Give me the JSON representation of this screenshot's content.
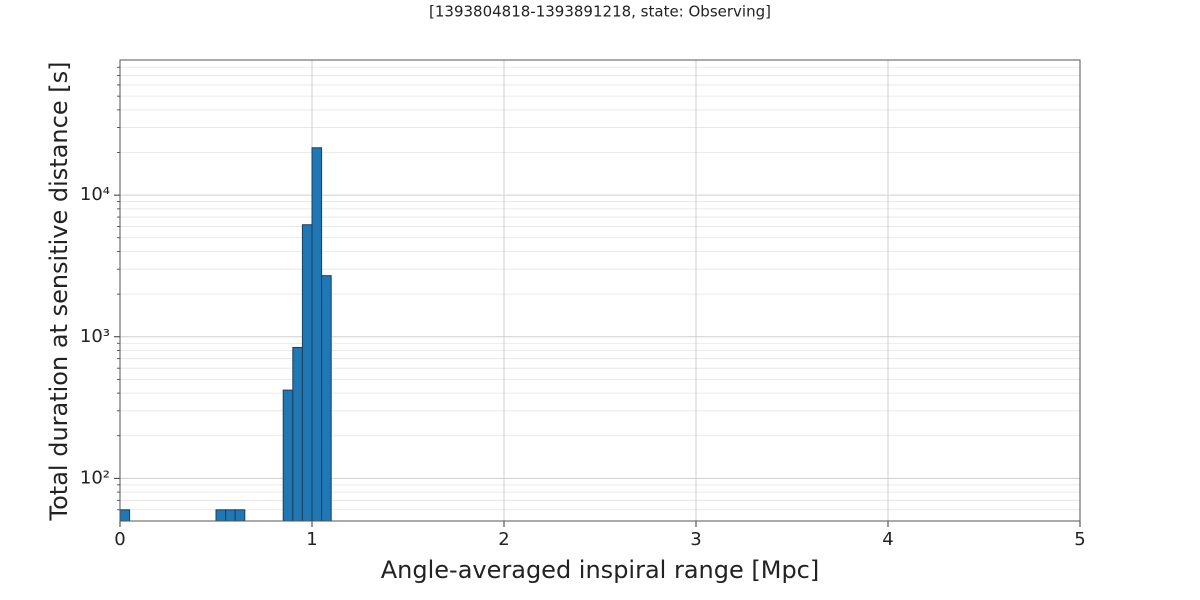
{
  "chart_data": {
    "type": "histogram",
    "title": "[1393804818-1393891218, state: Observing]",
    "xlabel": "Angle-averaged inspiral range [Mpc]",
    "ylabel": "Total duration at sensitive distance [s]",
    "bins": [
      0,
      0.05,
      0.1,
      0.15,
      0.2,
      0.25,
      0.3,
      0.35,
      0.4,
      0.45,
      0.5,
      0.55,
      0.6,
      0.65,
      0.7,
      0.75,
      0.8,
      0.85,
      0.9,
      0.95,
      1.0,
      1.05,
      1.1
    ],
    "values": [
      60,
      0,
      0,
      0,
      0,
      0,
      0,
      0,
      0,
      0,
      60,
      60,
      60,
      0,
      0,
      0,
      0,
      420,
      840,
      6180,
      21600,
      2700
    ],
    "color": "#1f77b4",
    "edgecolor": "#1c3f5e",
    "xlim": [
      0,
      5
    ],
    "xticks": [
      0,
      1,
      2,
      3,
      4,
      5
    ],
    "ylim": [
      50,
      90000
    ],
    "ylog": true,
    "yticks": [
      {
        "value": 100,
        "label": "10²"
      },
      {
        "value": 1000,
        "label": "10³"
      },
      {
        "value": 10000,
        "label": "10⁴"
      }
    ],
    "yminorticks": [
      60,
      70,
      80,
      90,
      200,
      300,
      400,
      500,
      600,
      700,
      800,
      900,
      2000,
      3000,
      4000,
      5000,
      6000,
      7000,
      8000,
      9000,
      20000,
      30000,
      40000,
      50000,
      60000,
      70000,
      80000
    ],
    "grid": true
  }
}
